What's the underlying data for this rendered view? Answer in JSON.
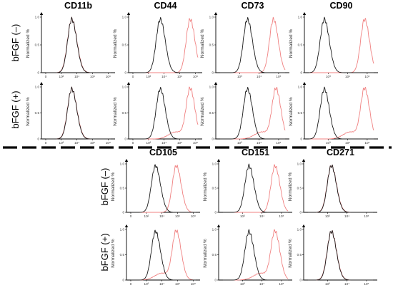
{
  "figure": {
    "row_condition_labels": [
      "bFGF (–)",
      "bFGF (+)"
    ],
    "y_axis_label": "Normalized %",
    "colors": {
      "control": "#1a1a1a",
      "marker": "#f08080"
    },
    "chart_data": [
      {
        "type": "line",
        "marker": "CD11b",
        "block": "top",
        "condition": "bFGF (–)",
        "title": "CD11b",
        "x_scale": "log",
        "xlim": [
          1,
          100000
        ],
        "ylim": [
          0,
          1.0
        ],
        "yticks": [
          "0",
          "0.5",
          "1.0"
        ],
        "xticks": [
          "0",
          "10²",
          "10⁴",
          "10⁶",
          "10⁸"
        ],
        "peak_log_x": {
          "control": 2.0,
          "marker": 2.0
        }
      },
      {
        "type": "line",
        "marker": "CD44",
        "block": "top",
        "condition": "bFGF (–)",
        "title": "CD44",
        "x_scale": "log",
        "xlim": [
          1,
          100000
        ],
        "ylim": [
          0,
          1.0
        ],
        "yticks": [
          "0",
          "0.5",
          "1.0"
        ],
        "xticks": [
          "0",
          "10²",
          "10⁴",
          "10⁶",
          "10⁸"
        ],
        "peak_log_x": {
          "control": 2.1,
          "marker": 4.4
        }
      },
      {
        "type": "line",
        "marker": "CD73",
        "block": "top",
        "condition": "bFGF (–)",
        "title": "CD73",
        "x_scale": "log",
        "xlim": [
          1,
          100000
        ],
        "ylim": [
          0,
          1.0
        ],
        "yticks": [
          "0",
          "0.5",
          "1.0"
        ],
        "xticks": [
          "10³",
          "10⁴",
          "10⁵"
        ],
        "peak_log_x": {
          "control": 2.1,
          "marker": 4.1
        }
      },
      {
        "type": "line",
        "marker": "CD90",
        "block": "top",
        "condition": "bFGF (–)",
        "title": "CD90",
        "x_scale": "log",
        "xlim": [
          1,
          100000
        ],
        "ylim": [
          0,
          1.0
        ],
        "yticks": [
          "0",
          "0.5",
          "1.0"
        ],
        "xticks": [
          "10³",
          "10⁴",
          "10⁵"
        ],
        "peak_log_x": {
          "control": 1.2,
          "marker": 4.3
        }
      },
      {
        "type": "line",
        "marker": "CD11b",
        "block": "top",
        "condition": "bFGF (+)",
        "x_scale": "log",
        "xlim": [
          1,
          100000
        ],
        "ylim": [
          0,
          1.0
        ],
        "yticks": [
          "0",
          "0.5",
          "1.0"
        ],
        "xticks": [
          "0",
          "10²",
          "10⁴",
          "10⁶",
          "10⁸"
        ],
        "peak_log_x": {
          "control": 2.0,
          "marker": 2.0
        }
      },
      {
        "type": "line",
        "marker": "CD44",
        "block": "top",
        "condition": "bFGF (+)",
        "x_scale": "log",
        "xlim": [
          1,
          100000
        ],
        "ylim": [
          0,
          1.0
        ],
        "yticks": [
          "0",
          "0.5",
          "1.0"
        ],
        "xticks": [
          "0",
          "10²",
          "10⁴",
          "10⁶",
          "10⁸"
        ],
        "peak_log_x": {
          "control": 2.1,
          "marker": 4.4
        }
      },
      {
        "type": "line",
        "marker": "CD73",
        "block": "top",
        "condition": "bFGF (+)",
        "x_scale": "log",
        "xlim": [
          1,
          100000
        ],
        "ylim": [
          0,
          1.0
        ],
        "yticks": [
          "0",
          "0.5",
          "1.0"
        ],
        "xticks": [
          "10³",
          "10⁴",
          "10⁵"
        ],
        "peak_log_x": {
          "control": 2.1,
          "marker": 4.3
        }
      },
      {
        "type": "line",
        "marker": "CD90",
        "block": "top",
        "condition": "bFGF (+)",
        "x_scale": "log",
        "xlim": [
          1,
          100000
        ],
        "ylim": [
          0,
          1.0
        ],
        "yticks": [
          "0",
          "0.5",
          "1.0"
        ],
        "xticks": [
          "10³",
          "10⁴",
          "10⁵"
        ],
        "peak_log_x": {
          "control": 1.2,
          "marker": 4.3
        }
      },
      {
        "type": "line",
        "marker": "CD105",
        "block": "bottom",
        "condition": "bFGF (–)",
        "title": "CD105",
        "x_scale": "log",
        "xlim": [
          1,
          100000
        ],
        "ylim": [
          0,
          1.0
        ],
        "yticks": [
          "0",
          "0.5",
          "1.0"
        ],
        "xticks": [
          "0",
          "10²",
          "10⁴",
          "10⁶",
          "10⁸"
        ],
        "peak_log_x": {
          "control": 1.9,
          "marker": 3.5
        }
      },
      {
        "type": "line",
        "marker": "CD151",
        "block": "bottom",
        "condition": "bFGF (–)",
        "title": "CD151",
        "x_scale": "log",
        "xlim": [
          1,
          100000
        ],
        "ylim": [
          0,
          1.0
        ],
        "yticks": [
          "0",
          "0.5",
          "1.0"
        ],
        "xticks": [
          "10³",
          "10⁴",
          "10⁵"
        ],
        "peak_log_x": {
          "control": 2.0,
          "marker": 4.0
        }
      },
      {
        "type": "line",
        "marker": "CD271",
        "block": "bottom",
        "condition": "bFGF (–)",
        "title": "CD271",
        "x_scale": "log",
        "xlim": [
          1,
          100000
        ],
        "ylim": [
          0,
          1.0
        ],
        "yticks": [
          "0",
          "0.5",
          "1.0"
        ],
        "xticks": [
          "10³",
          "10⁴",
          "10⁵"
        ],
        "peak_log_x": {
          "control": 1.8,
          "marker": 1.8
        }
      },
      {
        "type": "line",
        "marker": "CD105",
        "block": "bottom",
        "condition": "bFGF (+)",
        "x_scale": "log",
        "xlim": [
          1,
          100000
        ],
        "ylim": [
          0,
          1.0
        ],
        "yticks": [
          "0",
          "0.5",
          "1.0"
        ],
        "xticks": [
          "0",
          "10²",
          "10⁴",
          "10⁶",
          "10⁸"
        ],
        "peak_log_x": {
          "control": 1.9,
          "marker": 3.5
        }
      },
      {
        "type": "line",
        "marker": "CD151",
        "block": "bottom",
        "condition": "bFGF (+)",
        "x_scale": "log",
        "xlim": [
          1,
          100000
        ],
        "ylim": [
          0,
          1.0
        ],
        "yticks": [
          "0",
          "0.5",
          "1.0"
        ],
        "xticks": [
          "10³",
          "10⁴",
          "10⁵"
        ],
        "peak_log_x": {
          "control": 2.0,
          "marker": 4.0
        }
      },
      {
        "type": "line",
        "marker": "CD271",
        "block": "bottom",
        "condition": "bFGF (+)",
        "x_scale": "log",
        "xlim": [
          1,
          100000
        ],
        "ylim": [
          0,
          1.0
        ],
        "yticks": [
          "0",
          "0.5",
          "1.0"
        ],
        "xticks": [
          "10³",
          "10⁴",
          "10⁵"
        ],
        "peak_log_x": {
          "control": 1.8,
          "marker": 1.8
        }
      }
    ]
  }
}
